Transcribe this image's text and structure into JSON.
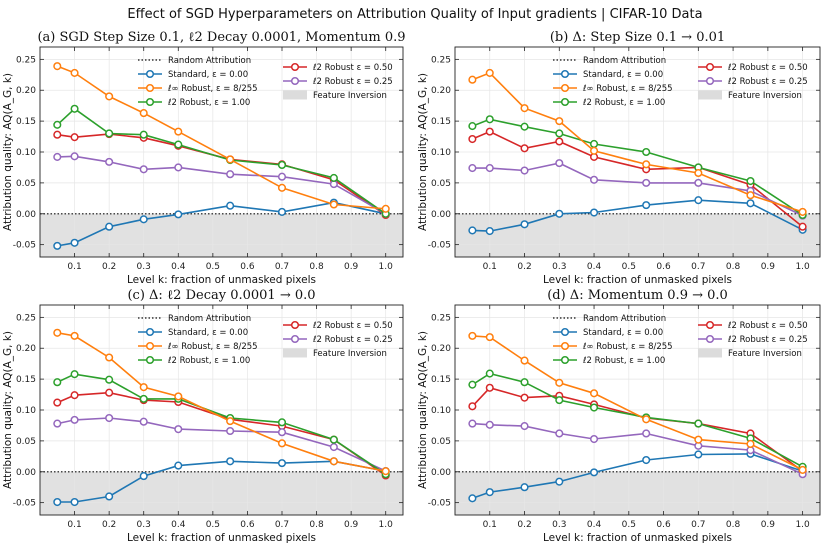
{
  "suptitle": "Effect of SGD Hyperparameters on Attribution Quality of Input gradients | CIFAR-10 Data",
  "chart_data": [
    {
      "type": "line",
      "title": "(a) SGD Step Size 0.1, ℓ2 Decay 0.0001, Momentum 0.9",
      "xlabel": "Level k: fraction of unmasked pixels",
      "ylabel": "Attribution quality: AQ(A_G, k)",
      "x": [
        0.05,
        0.1,
        0.2,
        0.3,
        0.4,
        0.55,
        0.7,
        0.85,
        1.0
      ],
      "xlim": [
        0.0,
        1.05
      ],
      "ylim": [
        -0.07,
        0.27
      ],
      "xticks": [
        "0.1",
        "0.2",
        "0.3",
        "0.4",
        "0.5",
        "0.6",
        "0.7",
        "0.8",
        "0.9",
        "1.0"
      ],
      "yticks": [
        "-0.05",
        "0.00",
        "0.05",
        "0.10",
        "0.15",
        "0.20",
        "0.25"
      ],
      "series": [
        {
          "name": "Standard, ε = 0.00",
          "color": "#1f77b4",
          "values": [
            -0.052,
            -0.047,
            -0.021,
            -0.009,
            -0.001,
            0.013,
            0.003,
            0.018,
            0.0
          ]
        },
        {
          "name": "ℓ∞ Robust, ε = 8/255",
          "color": "#ff7f0e",
          "values": [
            0.239,
            0.228,
            0.19,
            0.163,
            0.133,
            0.088,
            0.042,
            0.015,
            0.008
          ]
        },
        {
          "name": "ℓ2 Robust, ε = 1.00",
          "color": "#2ca02c",
          "values": [
            0.144,
            0.17,
            0.13,
            0.128,
            0.112,
            0.087,
            0.079,
            0.058,
            0.0
          ]
        },
        {
          "name": "ℓ2 Robust ε = 0.50",
          "color": "#d62728",
          "values": [
            0.128,
            0.124,
            0.129,
            0.123,
            0.11,
            0.088,
            0.08,
            0.055,
            -0.002
          ]
        },
        {
          "name": "ℓ2 Robust ε = 0.25",
          "color": "#9467bd",
          "values": [
            0.092,
            0.093,
            0.084,
            0.072,
            0.075,
            0.064,
            0.06,
            0.048,
            0.0
          ]
        }
      ],
      "legend": {
        "random": "Random Attribution",
        "inversion": "Feature Inversion"
      }
    },
    {
      "type": "line",
      "title": "(b) Δ: Step Size 0.1 → 0.01",
      "xlabel": "Level k: fraction of unmasked pixels",
      "ylabel": "Attribution quality: AQ(A_G, k)",
      "x": [
        0.05,
        0.1,
        0.2,
        0.3,
        0.4,
        0.55,
        0.7,
        0.85,
        1.0
      ],
      "xlim": [
        0.0,
        1.05
      ],
      "ylim": [
        -0.07,
        0.27
      ],
      "xticks": [
        "0.1",
        "0.2",
        "0.3",
        "0.4",
        "0.5",
        "0.6",
        "0.7",
        "0.8",
        "0.9",
        "1.0"
      ],
      "yticks": [
        "-0.05",
        "0.00",
        "0.05",
        "0.10",
        "0.15",
        "0.20",
        "0.25"
      ],
      "series": [
        {
          "name": "Standard, ε = 0.00",
          "color": "#1f77b4",
          "values": [
            -0.027,
            -0.028,
            -0.017,
            0.0,
            0.002,
            0.014,
            0.022,
            0.017,
            -0.026
          ]
        },
        {
          "name": "ℓ∞ Robust, ε = 8/255",
          "color": "#ff7f0e",
          "values": [
            0.217,
            0.228,
            0.171,
            0.15,
            0.102,
            0.08,
            0.066,
            0.03,
            0.003
          ]
        },
        {
          "name": "ℓ2 Robust, ε = 1.00",
          "color": "#2ca02c",
          "values": [
            0.142,
            0.153,
            0.141,
            0.13,
            0.113,
            0.1,
            0.075,
            0.053,
            -0.002
          ]
        },
        {
          "name": "ℓ2 Robust ε = 0.50",
          "color": "#d62728",
          "values": [
            0.121,
            0.133,
            0.106,
            0.117,
            0.092,
            0.072,
            0.075,
            0.047,
            -0.021
          ]
        },
        {
          "name": "ℓ2 Robust ε = 0.25",
          "color": "#9467bd",
          "values": [
            0.074,
            0.074,
            0.07,
            0.082,
            0.055,
            0.05,
            0.05,
            0.037,
            -0.003
          ]
        }
      ],
      "legend": {
        "random": "Random Attribution",
        "inversion": "Feature Inversion"
      }
    },
    {
      "type": "line",
      "title": "(c) Δ: ℓ2 Decay 0.0001 → 0.0",
      "xlabel": "Level k: fraction of unmasked pixels",
      "ylabel": "Attribution quality: AQ(A_G, k)",
      "x": [
        0.05,
        0.1,
        0.2,
        0.3,
        0.4,
        0.55,
        0.7,
        0.85,
        1.0
      ],
      "xlim": [
        0.0,
        1.05
      ],
      "ylim": [
        -0.07,
        0.27
      ],
      "xticks": [
        "0.1",
        "0.2",
        "0.3",
        "0.4",
        "0.5",
        "0.6",
        "0.7",
        "0.8",
        "0.9",
        "1.0"
      ],
      "yticks": [
        "-0.05",
        "0.00",
        "0.05",
        "0.10",
        "0.15",
        "0.20",
        "0.25"
      ],
      "series": [
        {
          "name": "Standard, ε = 0.00",
          "color": "#1f77b4",
          "values": [
            -0.049,
            -0.049,
            -0.04,
            -0.007,
            0.01,
            0.017,
            0.014,
            0.017,
            0.001
          ]
        },
        {
          "name": "ℓ∞ Robust, ε = 8/255",
          "color": "#ff7f0e",
          "values": [
            0.225,
            0.22,
            0.185,
            0.137,
            0.122,
            0.082,
            0.046,
            0.017,
            0.001
          ]
        },
        {
          "name": "ℓ2 Robust, ε = 1.00",
          "color": "#2ca02c",
          "values": [
            0.145,
            0.158,
            0.149,
            0.118,
            0.118,
            0.087,
            0.08,
            0.052,
            -0.004
          ]
        },
        {
          "name": "ℓ2 Robust ε = 0.50",
          "color": "#d62728",
          "values": [
            0.112,
            0.124,
            0.128,
            0.116,
            0.113,
            0.085,
            0.074,
            0.052,
            -0.006
          ]
        },
        {
          "name": "ℓ2 Robust ε = 0.25",
          "color": "#9467bd",
          "values": [
            0.078,
            0.084,
            0.087,
            0.081,
            0.069,
            0.066,
            0.064,
            0.04,
            0.001
          ]
        }
      ],
      "legend": {
        "random": "Random Attribution",
        "inversion": "Feature Inversion"
      }
    },
    {
      "type": "line",
      "title": "(d) Δ: Momentum 0.9 → 0.0",
      "xlabel": "Level k: fraction of unmasked pixels",
      "ylabel": "Attribution quality: AQ(A_G, k)",
      "x": [
        0.05,
        0.1,
        0.2,
        0.3,
        0.4,
        0.55,
        0.7,
        0.85,
        1.0
      ],
      "xlim": [
        0.0,
        1.05
      ],
      "ylim": [
        -0.07,
        0.27
      ],
      "xticks": [
        "0.1",
        "0.2",
        "0.3",
        "0.4",
        "0.5",
        "0.6",
        "0.7",
        "0.8",
        "0.9",
        "1.0"
      ],
      "yticks": [
        "-0.05",
        "0.00",
        "0.05",
        "0.10",
        "0.15",
        "0.20",
        "0.25"
      ],
      "series": [
        {
          "name": "Standard, ε = 0.00",
          "color": "#1f77b4",
          "values": [
            -0.043,
            -0.033,
            -0.025,
            -0.016,
            -0.001,
            0.019,
            0.028,
            0.029,
            0.001
          ]
        },
        {
          "name": "ℓ∞ Robust, ε = 8/255",
          "color": "#ff7f0e",
          "values": [
            0.22,
            0.218,
            0.18,
            0.144,
            0.127,
            0.085,
            0.052,
            0.045,
            0.003
          ]
        },
        {
          "name": "ℓ2 Robust, ε = 1.00",
          "color": "#2ca02c",
          "values": [
            0.141,
            0.159,
            0.145,
            0.116,
            0.104,
            0.088,
            0.078,
            0.054,
            0.008
          ]
        },
        {
          "name": "ℓ2 Robust ε = 0.50",
          "color": "#d62728",
          "values": [
            0.106,
            0.136,
            0.12,
            0.123,
            0.109,
            0.087,
            0.078,
            0.062,
            0.001
          ]
        },
        {
          "name": "ℓ2 Robust ε = 0.25",
          "color": "#9467bd",
          "values": [
            0.078,
            0.076,
            0.074,
            0.062,
            0.053,
            0.062,
            0.042,
            0.035,
            -0.004
          ]
        }
      ],
      "legend": {
        "random": "Random Attribution",
        "inversion": "Feature Inversion"
      }
    }
  ]
}
